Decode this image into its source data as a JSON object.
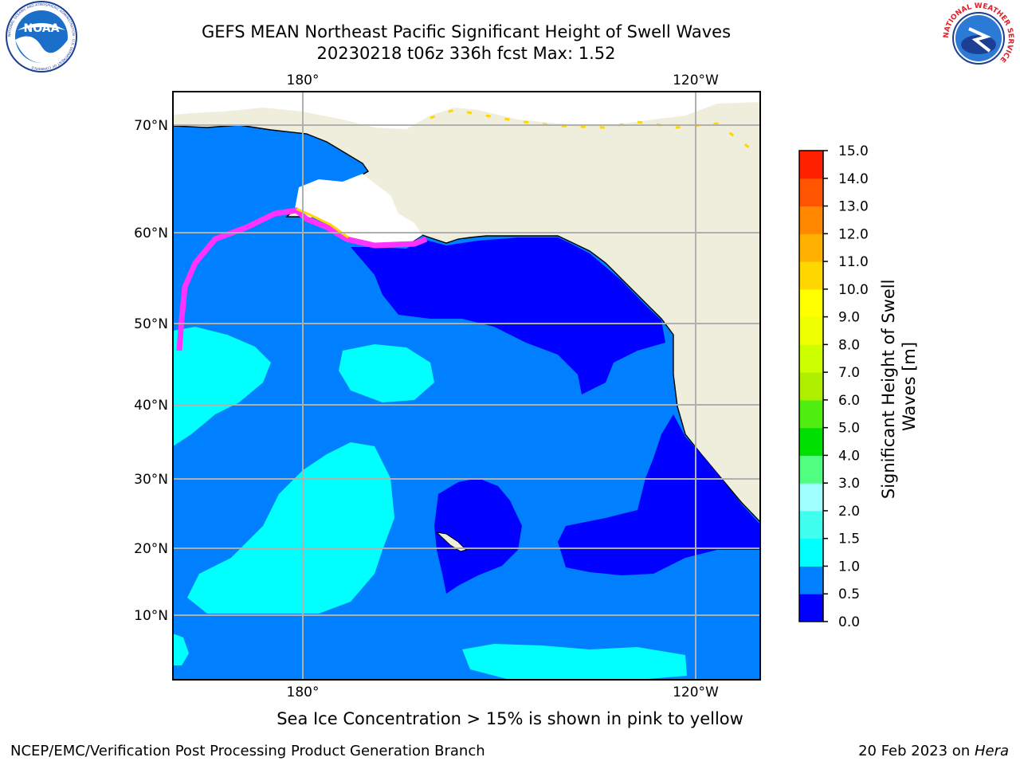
{
  "header": {
    "title_line1": "GEFS MEAN Northeast Pacific Significant Height of Swell Waves",
    "title_line2": "20230218 t06z 336h fcst   Max: 1.52"
  },
  "logos": {
    "left": "NOAA",
    "left_ring_text": "NATIONAL OCEANIC AND ATMOSPHERIC ADMINISTRATION · U.S. DEPARTMENT OF COMMERCE",
    "right_ring_text": "NATIONAL WEATHER SERVICE"
  },
  "map": {
    "lon_top_labels": [
      "180°",
      "120°W"
    ],
    "lon_bottom_labels": [
      "180°",
      "120°W"
    ],
    "lat_labels": [
      "70°N",
      "60°N",
      "50°N",
      "40°N",
      "30°N",
      "20°N",
      "10°N"
    ],
    "gridlines": true,
    "colors": {
      "land": "#efeedc",
      "ocean_main": "#0080ff",
      "ocean_low": "#0000ff",
      "ocean_mid": "#00ffff",
      "ice_pink": "#ff33ff",
      "ice_yellow": "#ffd700",
      "sea_ice_white": "#ffffff",
      "grid": "#b0b0b0"
    }
  },
  "colorbar": {
    "title_line1": "Significant Height of Swell",
    "title_line2": "Waves [m]",
    "ticks": [
      "0.0",
      "0.5",
      "1.0",
      "1.5",
      "2.0",
      "3.0",
      "4.0",
      "5.0",
      "6.0",
      "7.0",
      "8.0",
      "9.0",
      "10.0",
      "11.0",
      "12.0",
      "13.0",
      "14.0",
      "15.0"
    ],
    "colors": [
      "#0000ff",
      "#0080ff",
      "#00ffff",
      "#40ffee",
      "#a0ffff",
      "#50ff80",
      "#00e000",
      "#50ee10",
      "#b0ee00",
      "#ccff00",
      "#eeff00",
      "#ffff00",
      "#ffd700",
      "#ffb000",
      "#ff8800",
      "#ff5500",
      "#ff2000",
      "#ff0000"
    ]
  },
  "notes": {
    "sea_ice": "Sea Ice Concentration > 15% is shown in pink to yellow"
  },
  "footer": {
    "left": "NCEP/EMC/Verification Post Processing Product Generation Branch",
    "right_date": "20 Feb 2023 on ",
    "right_host": "Hera"
  }
}
